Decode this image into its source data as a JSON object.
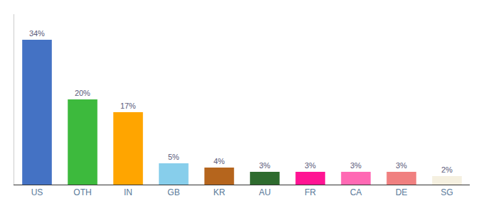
{
  "chart_data": {
    "type": "bar",
    "categories": [
      "US",
      "OTH",
      "IN",
      "GB",
      "KR",
      "AU",
      "FR",
      "CA",
      "DE",
      "SG"
    ],
    "values": [
      34,
      20,
      17,
      5,
      4,
      3,
      3,
      3,
      3,
      2
    ],
    "value_labels": [
      "34%",
      "20%",
      "17%",
      "5%",
      "4%",
      "3%",
      "3%",
      "3%",
      "3%",
      "2%"
    ],
    "colors": [
      "#4472c4",
      "#3dba3d",
      "#ffa500",
      "#87ceeb",
      "#b5651d",
      "#2e6b2e",
      "#ff1493",
      "#ff69b4",
      "#f08080",
      "#f5f0e0"
    ],
    "ylim": [
      0,
      40
    ],
    "data_labels": true,
    "tick_labels": "x",
    "grid": false
  }
}
